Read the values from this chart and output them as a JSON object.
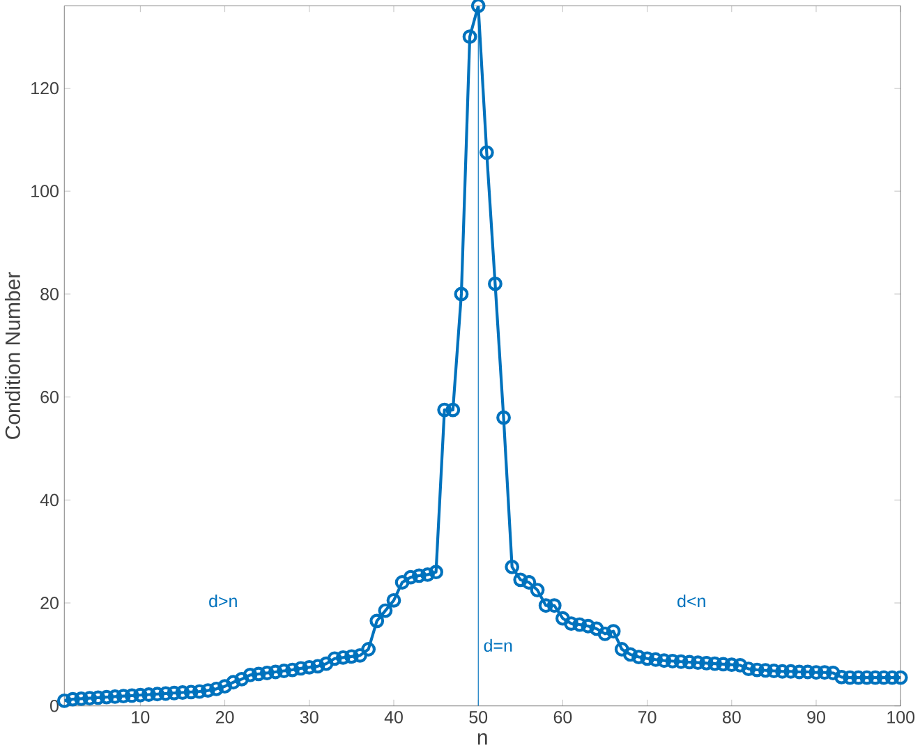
{
  "chart_data": {
    "type": "line",
    "xlabel": "n",
    "ylabel": "Condition Number",
    "x": [
      1,
      2,
      3,
      4,
      5,
      6,
      7,
      8,
      9,
      10,
      11,
      12,
      13,
      14,
      15,
      16,
      17,
      18,
      19,
      20,
      21,
      22,
      23,
      24,
      25,
      26,
      27,
      28,
      29,
      30,
      31,
      32,
      33,
      34,
      35,
      36,
      37,
      38,
      39,
      40,
      41,
      42,
      43,
      44,
      45,
      46,
      47,
      48,
      49,
      50,
      51,
      52,
      53,
      54,
      55,
      56,
      57,
      58,
      59,
      60,
      61,
      62,
      63,
      64,
      65,
      66,
      67,
      68,
      69,
      70,
      71,
      72,
      73,
      74,
      75,
      76,
      77,
      78,
      79,
      80,
      81,
      82,
      83,
      84,
      85,
      86,
      87,
      88,
      89,
      90,
      91,
      92,
      93,
      94,
      95,
      96,
      97,
      98,
      99,
      100
    ],
    "series": [
      {
        "color": "#0072bd",
        "values": [
          1.0,
          1.3,
          1.4,
          1.5,
          1.6,
          1.7,
          1.8,
          1.9,
          2.0,
          2.1,
          2.2,
          2.3,
          2.4,
          2.5,
          2.6,
          2.7,
          2.8,
          3.0,
          3.3,
          3.8,
          4.6,
          5.2,
          6.0,
          6.2,
          6.4,
          6.6,
          6.8,
          7.0,
          7.3,
          7.5,
          7.7,
          8.2,
          9.2,
          9.4,
          9.6,
          9.8,
          11,
          16.5,
          18.5,
          20.5,
          24,
          25,
          25.3,
          25.5,
          26,
          57.5,
          57.5,
          80,
          130,
          136,
          107.5,
          82,
          56,
          27,
          24.5,
          24,
          22.5,
          19.5,
          19.5,
          17,
          16,
          15.8,
          15.5,
          15,
          14,
          14.5,
          11,
          10,
          9.5,
          9.2,
          9,
          8.8,
          8.7,
          8.6,
          8.5,
          8.4,
          8.3,
          8.2,
          8.1,
          8.0,
          7.9,
          7.2,
          7.0,
          6.9,
          6.8,
          6.7,
          6.7,
          6.6,
          6.6,
          6.5,
          6.5,
          6.4,
          5.6,
          5.5,
          5.5,
          5.5,
          5.5,
          5.5,
          5.5,
          5.5
        ]
      }
    ],
    "xlim": [
      1,
      100
    ],
    "ylim": [
      0,
      136
    ],
    "xticks": [
      10,
      20,
      30,
      40,
      50,
      60,
      70,
      80,
      90,
      100
    ],
    "yticks": [
      0,
      20,
      40,
      60,
      80,
      100,
      120
    ],
    "marker": "circle",
    "line_style": "solid",
    "grid": false,
    "ref_lines": [
      {
        "axis": "x",
        "value": 50,
        "label": "d=n",
        "color": "#0072bd"
      }
    ],
    "annotations": [
      "d>n",
      "d<n"
    ]
  }
}
